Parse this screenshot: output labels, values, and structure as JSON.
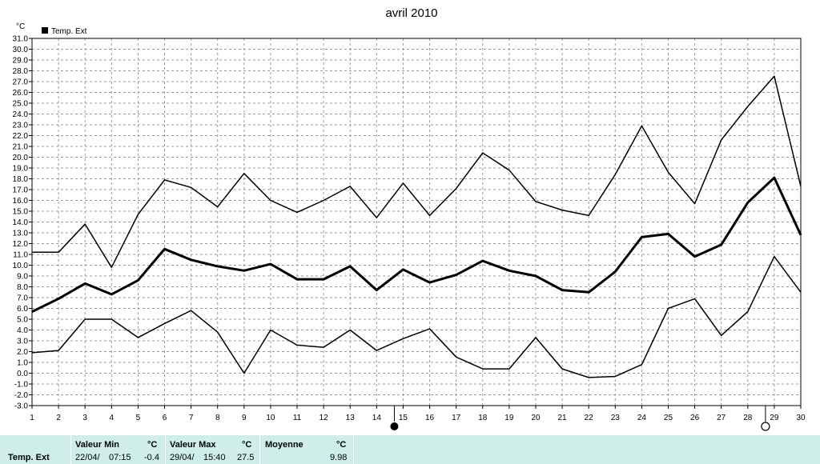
{
  "chart_data": {
    "type": "line",
    "title": "avril 2010",
    "yunit": "°C",
    "legend": "Temp. Ext",
    "legend_position": "top-left",
    "grid": true,
    "ylim": [
      -3.0,
      31.0
    ],
    "ytick_step": 1.0,
    "x": [
      1,
      2,
      3,
      4,
      5,
      6,
      7,
      8,
      9,
      10,
      11,
      12,
      13,
      14,
      15,
      16,
      17,
      18,
      19,
      20,
      21,
      22,
      23,
      24,
      25,
      26,
      27,
      28,
      29,
      30
    ],
    "series": [
      {
        "values": [
          11.2,
          11.2,
          13.8,
          9.8,
          14.7,
          17.9,
          17.2,
          15.4,
          18.5,
          16.0,
          14.9,
          16.0,
          17.3,
          14.4,
          17.6,
          14.6,
          17.1,
          20.4,
          18.8,
          15.9,
          15.1,
          14.6,
          18.4,
          22.9,
          18.6,
          15.7,
          21.6,
          24.7,
          27.5,
          17.3
        ],
        "stroke": 1.5
      },
      {
        "values": [
          5.7,
          6.9,
          8.3,
          7.3,
          8.6,
          11.5,
          10.5,
          9.9,
          9.5,
          10.1,
          8.7,
          8.7,
          9.9,
          7.7,
          9.6,
          8.4,
          9.1,
          10.4,
          9.5,
          9.0,
          7.7,
          7.5,
          9.4,
          12.6,
          12.9,
          10.8,
          11.9,
          15.8,
          18.1,
          12.8
        ],
        "stroke": 3
      },
      {
        "values": [
          1.9,
          2.1,
          5.0,
          5.0,
          3.3,
          4.6,
          5.8,
          3.8,
          0.0,
          4.0,
          2.6,
          2.4,
          4.0,
          2.1,
          3.2,
          4.1,
          1.5,
          0.4,
          0.4,
          3.3,
          0.4,
          -0.4,
          -0.3,
          0.8,
          6.0,
          6.9,
          3.5,
          5.7,
          10.8,
          7.5
        ],
        "stroke": 1.5
      }
    ],
    "markers": [
      {
        "x": 15,
        "kind": "new-moon"
      },
      {
        "x": 29,
        "kind": "full-moon"
      }
    ]
  },
  "stats": {
    "row_label": "Temp. Ext",
    "min_header": "Valeur Min",
    "max_header": "Valeur Max",
    "avg_header": "Moyenne",
    "unit": "°C",
    "min_date": "22/04/",
    "min_time": "07:15",
    "min_value": "-0.4",
    "max_date": "29/04/",
    "max_time": "15:40",
    "max_value": "27.5",
    "avg_value": "9.98"
  }
}
